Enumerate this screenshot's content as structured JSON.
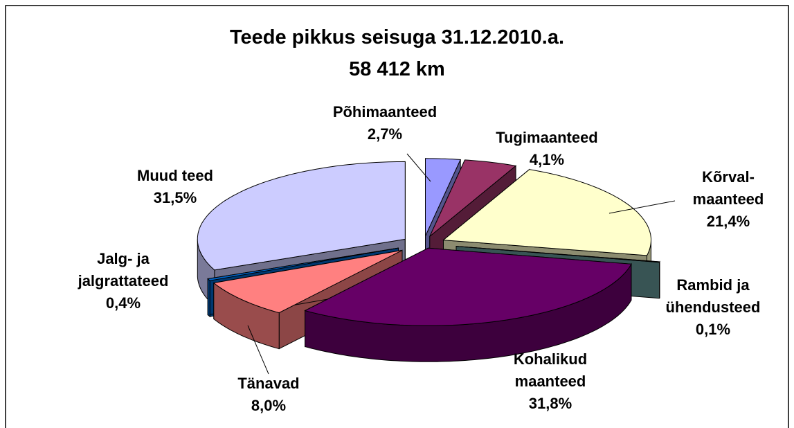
{
  "chart_data": {
    "type": "pie",
    "title": "Teede pikkus seisuga 31.12.2010.a.",
    "subtitle": "58 412 km",
    "categories": [
      "Põhimaanteed",
      "Tugimaanteed",
      "Kõrval-\nmaanteed",
      "Rambid ja\nühendusteed",
      "Kohalikud\nmaanteed",
      "Tänavad",
      "Jalg- ja\njalgrattateed",
      "Muud teed"
    ],
    "values": [
      2.7,
      4.1,
      21.4,
      0.1,
      31.8,
      8.0,
      0.4,
      31.5
    ],
    "value_labels": [
      "2,7%",
      "4,1%",
      "21,4%",
      "0,1%",
      "31,8%",
      "8,0%",
      "0,4%",
      "31,5%"
    ],
    "colors": [
      "#9999ff",
      "#993366",
      "#ffffcc",
      "#669999",
      "#660066",
      "#ff8080",
      "#0066cc",
      "#ccccff"
    ]
  }
}
